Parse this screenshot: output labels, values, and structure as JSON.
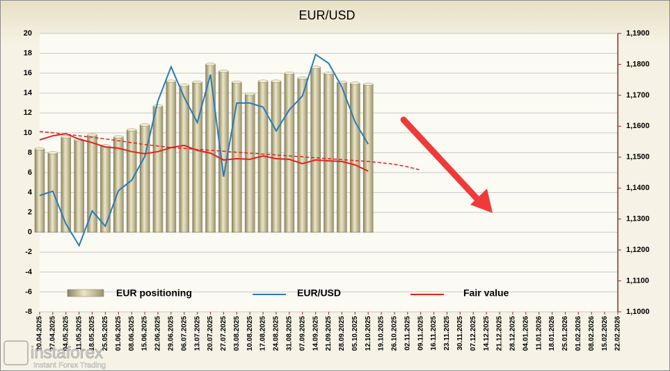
{
  "chart_data": {
    "type": "bar",
    "title": "EUR/USD",
    "watermark": {
      "brand": "instaforex",
      "tagline": "Instant Forex Trading"
    },
    "categories": [
      "20.04.2025",
      "27.04.2025",
      "04.05.2025",
      "11.05.2025",
      "18.05.2025",
      "25.05.2025",
      "01.06.2025",
      "08.06.2025",
      "15.06.2025",
      "22.06.2025",
      "29.06.2025",
      "06.07.2025",
      "13.07.2025",
      "20.07.2025",
      "27.07.2025",
      "03.08.2025",
      "10.08.2025",
      "17.08.2025",
      "24.08.2025",
      "31.08.2025",
      "07.09.2025",
      "14.09.2025",
      "21.09.2025",
      "28.09.2025",
      "05.10.2025",
      "12.10.2025",
      "19.10.2025",
      "26.10.2025",
      "02.11.2025",
      "09.11.2025",
      "16.11.2025",
      "23.11.2025",
      "30.11.2025",
      "07.12.2025",
      "14.12.2025",
      "21.12.2025",
      "28.12.2025",
      "04.01.2026",
      "11.01.2026",
      "18.01.2026",
      "25.01.2026",
      "01.02.2026",
      "08.02.2026",
      "15.02.2026",
      "22.02.2026"
    ],
    "series": [
      {
        "name": "EUR positioning",
        "type": "bar",
        "axis": "y",
        "color": "#b8b08a",
        "values": [
          8.4,
          8.0,
          9.6,
          9.3,
          9.8,
          8.7,
          9.6,
          10.3,
          10.8,
          12.7,
          15.2,
          14.8,
          15.1,
          16.9,
          16.2,
          15.1,
          13.9,
          15.2,
          15.2,
          16.0,
          15.5,
          16.6,
          16.0,
          15.1,
          15.0,
          14.9,
          null,
          null,
          null,
          null,
          null,
          null,
          null,
          null,
          null,
          null,
          null,
          null,
          null,
          null,
          null,
          null,
          null,
          null,
          null
        ]
      },
      {
        "name": "EUR/USD",
        "type": "line",
        "axis": "y2",
        "color": "#2a7ab8",
        "values": [
          1.1376,
          1.139,
          1.1284,
          1.1214,
          1.1326,
          1.1277,
          1.1392,
          1.1425,
          1.1502,
          1.1682,
          1.1792,
          1.1693,
          1.1612,
          1.1767,
          1.1437,
          1.1675,
          1.1675,
          1.1662,
          1.1585,
          1.1653,
          1.1698,
          1.1832,
          1.1803,
          1.1727,
          1.1614,
          1.1542,
          null,
          null,
          null,
          null,
          null,
          null,
          null,
          null,
          null,
          null,
          null,
          null,
          null,
          null,
          null,
          null,
          null,
          null,
          null
        ]
      },
      {
        "name": "Fair value",
        "type": "line",
        "axis": "y2",
        "color": "#e8201c",
        "values": [
          1.1556,
          1.1569,
          1.1576,
          1.1558,
          1.1547,
          1.1533,
          1.1529,
          1.1518,
          1.1511,
          1.1518,
          1.1531,
          1.1538,
          1.1522,
          1.1513,
          1.1491,
          1.1495,
          1.1493,
          1.1504,
          1.1495,
          1.1493,
          1.1479,
          1.1491,
          1.1488,
          1.1486,
          1.1475,
          1.1455,
          null,
          null,
          null,
          null,
          null,
          null,
          null,
          null,
          null,
          null,
          null,
          null,
          null,
          null,
          null,
          null,
          null,
          null,
          null
        ]
      },
      {
        "type": "line",
        "axis": "y2",
        "color": "#e8201c",
        "dashed": true,
        "values": [
          1.1583,
          1.1579,
          1.1574,
          1.1569,
          1.1564,
          1.1559,
          1.1553,
          1.1547,
          1.1541,
          1.1536,
          1.1531,
          1.1528,
          1.1525,
          1.1522,
          1.1519,
          1.1516,
          1.1513,
          1.151,
          1.1507,
          1.1504,
          1.1501,
          1.1498,
          1.1495,
          1.1492,
          1.1489,
          1.1486,
          1.1482,
          1.1477,
          1.1469,
          1.1458,
          null,
          null,
          null,
          null,
          null,
          null,
          null,
          null,
          null,
          null,
          null,
          null,
          null,
          null,
          null
        ]
      }
    ],
    "ylim": [
      -8,
      20
    ],
    "yticks": [
      -8,
      -6,
      -4,
      -2,
      0,
      2,
      4,
      6,
      8,
      10,
      12,
      14,
      16,
      18,
      20
    ],
    "y2lim": [
      1.1,
      1.19
    ],
    "y2ticks": [
      {
        "value": 1.1,
        "label": "1,1000"
      },
      {
        "value": 1.11,
        "label": "1,1100"
      },
      {
        "value": 1.12,
        "label": "1,1200"
      },
      {
        "value": 1.13,
        "label": "1,1300"
      },
      {
        "value": 1.14,
        "label": "1,1400"
      },
      {
        "value": 1.15,
        "label": "1,1500"
      },
      {
        "value": 1.16,
        "label": "1,1600"
      },
      {
        "value": 1.17,
        "label": "1,1700"
      },
      {
        "value": 1.18,
        "label": "1,1800"
      },
      {
        "value": 1.19,
        "label": "1,1900"
      }
    ],
    "grid": true,
    "legend": "bottom"
  }
}
